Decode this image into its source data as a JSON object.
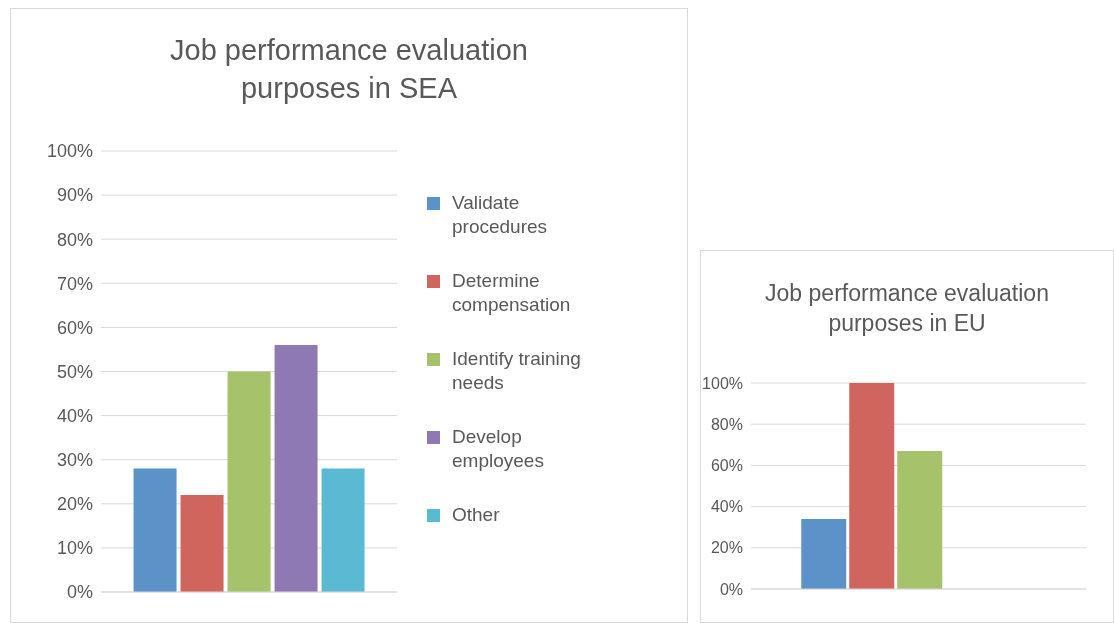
{
  "chart_data": [
    {
      "type": "bar",
      "title": "Job performance evaluation purposes in SEA",
      "categories": [
        null
      ],
      "series": [
        {
          "name": "Validate procedures",
          "color": "#5b93c9",
          "values": [
            28
          ]
        },
        {
          "name": "Determine compensation",
          "color": "#cf655c",
          "values": [
            22
          ]
        },
        {
          "name": "Identify training needs",
          "color": "#a6c26a",
          "values": [
            50
          ]
        },
        {
          "name": "Develop employees",
          "color": "#8f79b2",
          "values": [
            56
          ]
        },
        {
          "name": "Other",
          "color": "#5ab9d3",
          "values": [
            28
          ]
        }
      ],
      "ylim": [
        0,
        100
      ],
      "yticks": [
        {
          "value": 0,
          "label": "0%"
        },
        {
          "value": 10,
          "label": "10%"
        },
        {
          "value": 20,
          "label": "20%"
        },
        {
          "value": 30,
          "label": "30%"
        },
        {
          "value": 40,
          "label": "40%"
        },
        {
          "value": 50,
          "label": "50%"
        },
        {
          "value": 60,
          "label": "60%"
        },
        {
          "value": 70,
          "label": "70%"
        },
        {
          "value": 80,
          "label": "80%"
        },
        {
          "value": 90,
          "label": "90%"
        },
        {
          "value": 100,
          "label": "100%"
        }
      ],
      "grid": "y",
      "legend": "right"
    },
    {
      "type": "bar",
      "title": "Job performance evaluation purposes in EU",
      "categories": [
        null
      ],
      "series": [
        {
          "color": "#5b93c9",
          "values": [
            34
          ]
        },
        {
          "color": "#cf655c",
          "values": [
            100
          ]
        },
        {
          "color": "#a6c26a",
          "values": [
            67
          ]
        },
        {
          "color": "#8f79b2",
          "values": [
            0
          ]
        },
        {
          "color": "#5ab9d3",
          "values": [
            0
          ]
        }
      ],
      "ylim": [
        0,
        100
      ],
      "yticks": [
        {
          "value": 0,
          "label": "0%"
        },
        {
          "value": 20,
          "label": "20%"
        },
        {
          "value": 40,
          "label": "40%"
        },
        {
          "value": 60,
          "label": "60%"
        },
        {
          "value": 80,
          "label": "80%"
        },
        {
          "value": 100,
          "label": "100%"
        }
      ],
      "grid": "y"
    }
  ]
}
